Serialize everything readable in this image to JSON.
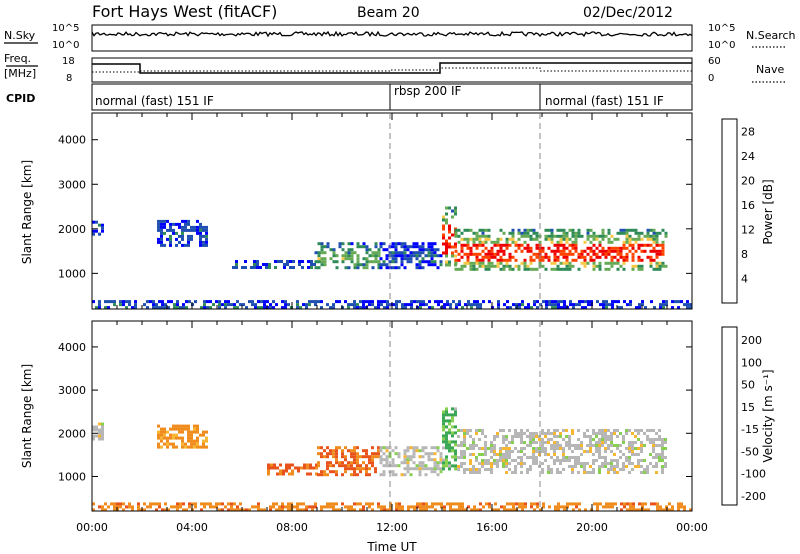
{
  "header": {
    "station": "Fort Hays West (fitACF)",
    "beam": "Beam 20",
    "date": "02/Dec/2012"
  },
  "panels": {
    "noise": {
      "left_label": "N.Sky",
      "right_label": "N.Search",
      "left_ticks": [
        "10^5",
        "10^0"
      ],
      "right_ticks": [
        "10^5",
        "10^0"
      ]
    },
    "freq": {
      "left_label_1": "Freq.",
      "left_label_2": "[MHz]",
      "right_label": "Nave",
      "left_ticks": [
        "18",
        "8"
      ],
      "right_ticks": [
        "60",
        "0"
      ]
    },
    "cpid": {
      "label": "CPID",
      "modes": [
        "normal (fast) 151 IF",
        "rbsp 200 IF",
        "normal (fast) 151 IF"
      ]
    }
  },
  "colors": {
    "power": [
      "#0000ff",
      "#1f4fb0",
      "#2e8b57",
      "#66aa55",
      "#f7c846",
      "#ff9900",
      "#ff4400",
      "#ee0000"
    ],
    "velocity": [
      "#1c39a6",
      "#2e6b5a",
      "#39a653",
      "#87d04f",
      "#c8c8c8",
      "#f7b733",
      "#f08c1d",
      "#e8531c",
      "#d11b1b"
    ],
    "ground": "#b7b7b7"
  },
  "chart_data": [
    {
      "type": "heatmap",
      "name": "Power",
      "xlabel": "",
      "ylabel": "Slant Range [km]",
      "x_ticks": [
        "00:00",
        "04:00",
        "08:00",
        "12:00",
        "16:00",
        "20:00",
        "00:00"
      ],
      "y_ticks": [
        1000,
        2000,
        3000,
        4000
      ],
      "ylim": [
        200,
        4600
      ],
      "xlim_hours": [
        0,
        24
      ],
      "colorbar": {
        "label": "Power [dB]",
        "ticks": [
          4,
          8,
          12,
          16,
          20,
          24,
          28
        ],
        "range": [
          0,
          30
        ]
      },
      "regions": [
        {
          "t": [
            0.0,
            0.4
          ],
          "r": [
            1850,
            2250
          ],
          "level": "low"
        },
        {
          "t": [
            2.6,
            4.6
          ],
          "r": [
            1650,
            2200
          ],
          "level": "low"
        },
        {
          "t": [
            5.6,
            8.9
          ],
          "r": [
            1100,
            1300
          ],
          "level": "low"
        },
        {
          "t": [
            8.9,
            11.5
          ],
          "r": [
            1100,
            1700
          ],
          "level": "mid"
        },
        {
          "t": [
            11.5,
            14.0
          ],
          "r": [
            1100,
            1700
          ],
          "level": "low"
        },
        {
          "t": [
            14.0,
            14.5
          ],
          "r": [
            1200,
            2500
          ],
          "level": "high"
        },
        {
          "t": [
            14.5,
            23.0
          ],
          "r": [
            1100,
            2000
          ],
          "level": "high"
        },
        {
          "t": [
            0,
            24
          ],
          "r": [
            200,
            400
          ],
          "level": "low"
        }
      ]
    },
    {
      "type": "heatmap",
      "name": "Velocity",
      "xlabel": "Time UT",
      "ylabel": "Slant Range [km]",
      "x_ticks": [
        "00:00",
        "04:00",
        "08:00",
        "12:00",
        "16:00",
        "20:00",
        "00:00"
      ],
      "y_ticks": [
        1000,
        2000,
        3000,
        4000
      ],
      "ylim": [
        200,
        4600
      ],
      "xlim_hours": [
        0,
        24
      ],
      "colorbar": {
        "label": "Velocity [m s⁻¹]",
        "ticks": [
          200,
          100,
          50,
          15,
          -15,
          -50,
          -100,
          -200
        ],
        "range": [
          -250,
          250
        ]
      },
      "regions": [
        {
          "t": [
            0.0,
            0.4
          ],
          "r": [
            1850,
            2250
          ],
          "velocity": 0
        },
        {
          "t": [
            2.6,
            4.6
          ],
          "r": [
            1650,
            2200
          ],
          "velocity": -40
        },
        {
          "t": [
            7.0,
            9.0
          ],
          "r": [
            1050,
            1300
          ],
          "velocity": -80
        },
        {
          "t": [
            9.0,
            11.5
          ],
          "r": [
            1050,
            1700
          ],
          "velocity": -80
        },
        {
          "t": [
            11.5,
            14.0
          ],
          "r": [
            1050,
            1700
          ],
          "velocity": 0
        },
        {
          "t": [
            14.0,
            14.6
          ],
          "r": [
            1200,
            2600
          ],
          "velocity": 30
        },
        {
          "t": [
            14.6,
            23.0
          ],
          "r": [
            1100,
            2100
          ],
          "velocity": 0
        },
        {
          "t": [
            0,
            24
          ],
          "r": [
            200,
            400
          ],
          "velocity": -60
        }
      ]
    }
  ]
}
